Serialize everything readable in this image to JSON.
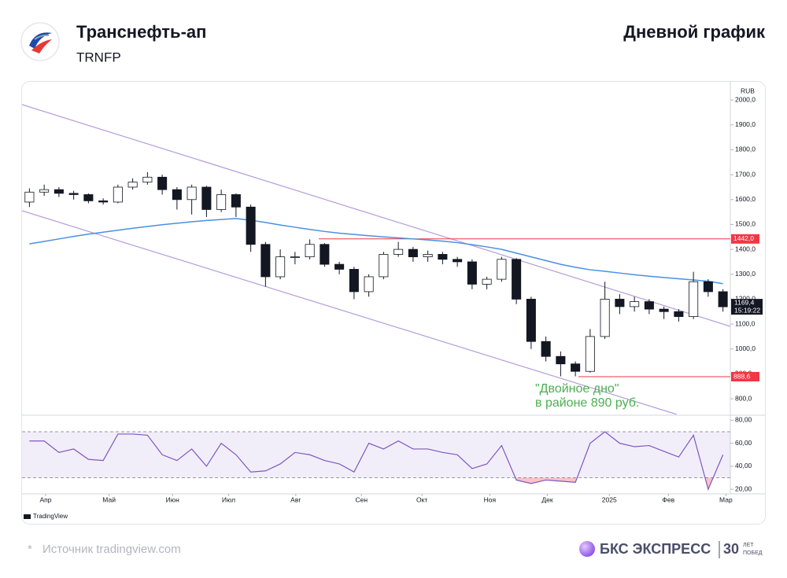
{
  "header": {
    "title": "Транснефть-ап",
    "ticker": "TRNFP",
    "chart_label": "Дневной график"
  },
  "chart_data": {
    "type": "candlestick",
    "currency": "RUB",
    "xlim": [
      -0.5,
      47.5
    ],
    "xticks": [
      {
        "value": 1.1,
        "label": "Апр"
      },
      {
        "value": 5.4,
        "label": "Май"
      },
      {
        "value": 9.7,
        "label": "Июн"
      },
      {
        "value": 13.5,
        "label": "Июл"
      },
      {
        "value": 18.05,
        "label": "Авг"
      },
      {
        "value": 22.5,
        "label": "Сен"
      },
      {
        "value": 26.6,
        "label": "Окт"
      },
      {
        "value": 31.2,
        "label": "Ноя"
      },
      {
        "value": 35.1,
        "label": "Дек"
      },
      {
        "value": 39.3,
        "label": "2025"
      },
      {
        "value": 43.3,
        "label": "Фев"
      },
      {
        "value": 47.2,
        "label": "Мар"
      }
    ],
    "ylim": [
      737,
      2070
    ],
    "yticks": [
      {
        "value": 2000,
        "label": "2000,0"
      },
      {
        "value": 1900,
        "label": "1900,0"
      },
      {
        "value": 1800,
        "label": "1800,0"
      },
      {
        "value": 1700,
        "label": "1700,0"
      },
      {
        "value": 1600,
        "label": "1600,0"
      },
      {
        "value": 1500,
        "label": "1500,0"
      },
      {
        "value": 1400,
        "label": "1400,0"
      },
      {
        "value": 1300,
        "label": "1300,0"
      },
      {
        "value": 1200,
        "label": "1200,0"
      },
      {
        "value": 1100,
        "label": "1100,0"
      },
      {
        "value": 1000,
        "label": "1000,0"
      },
      {
        "value": 900,
        "label": "900,0"
      },
      {
        "value": 800,
        "label": "800,0"
      }
    ],
    "candles": {
      "open": [
        1590,
        1630,
        1640,
        1625,
        1620,
        1595,
        1590,
        1650,
        1670,
        1690,
        1640,
        1600,
        1650,
        1560,
        1620,
        1570,
        1420,
        1290,
        1370,
        1370,
        1420,
        1340,
        1320,
        1230,
        1290,
        1380,
        1400,
        1370,
        1380,
        1360,
        1350,
        1260,
        1280,
        1360,
        1200,
        1030,
        970,
        940,
        910,
        1050,
        1200,
        1170,
        1190,
        1160,
        1150,
        1130,
        1270,
        1230
      ],
      "high": [
        1645,
        1660,
        1650,
        1635,
        1625,
        1605,
        1660,
        1685,
        1710,
        1700,
        1650,
        1660,
        1655,
        1640,
        1625,
        1580,
        1430,
        1400,
        1390,
        1440,
        1425,
        1350,
        1330,
        1300,
        1390,
        1430,
        1410,
        1395,
        1390,
        1370,
        1360,
        1290,
        1370,
        1365,
        1210,
        1050,
        990,
        950,
        1080,
        1270,
        1220,
        1210,
        1200,
        1170,
        1160,
        1310,
        1280,
        1240
      ],
      "low": [
        1570,
        1615,
        1610,
        1600,
        1585,
        1580,
        1585,
        1640,
        1660,
        1620,
        1560,
        1540,
        1530,
        1550,
        1530,
        1390,
        1250,
        1280,
        1340,
        1360,
        1330,
        1300,
        1200,
        1210,
        1280,
        1370,
        1350,
        1350,
        1340,
        1330,
        1240,
        1240,
        1270,
        1180,
        1000,
        950,
        890,
        890,
        905,
        1040,
        1140,
        1150,
        1140,
        1120,
        1110,
        1120,
        1210,
        1150
      ],
      "close": [
        1630,
        1640,
        1625,
        1620,
        1595,
        1590,
        1650,
        1670,
        1690,
        1640,
        1600,
        1650,
        1560,
        1620,
        1570,
        1420,
        1290,
        1370,
        1370,
        1420,
        1340,
        1320,
        1230,
        1290,
        1380,
        1400,
        1370,
        1380,
        1360,
        1350,
        1260,
        1280,
        1360,
        1200,
        1030,
        970,
        940,
        910,
        1050,
        1200,
        1170,
        1190,
        1160,
        1150,
        1130,
        1270,
        1230,
        1169.4
      ],
      "up_color": "#ffffff",
      "down_color": "#131722"
    },
    "moving_average": {
      "color": "#4a90e2",
      "values": [
        1422,
        1432,
        1442,
        1452,
        1461,
        1469,
        1477,
        1485,
        1492,
        1499,
        1505,
        1511,
        1516,
        1520,
        1524,
        1517,
        1508,
        1498,
        1489,
        1480,
        1472,
        1465,
        1460,
        1455,
        1450,
        1446,
        1442,
        1438,
        1433,
        1427,
        1419,
        1410,
        1400,
        1385,
        1370,
        1355,
        1340,
        1328,
        1318,
        1312,
        1305,
        1298,
        1292,
        1287,
        1282,
        1277,
        1272,
        1262
      ]
    },
    "levels": [
      {
        "value": 1442,
        "label": "1442,0",
        "color": "#f23645"
      },
      {
        "value": 888.6,
        "label": "888,6",
        "color": "#f23645"
      }
    ],
    "last_price": {
      "value": 1169.4,
      "label": "1169,4",
      "time": "15:19:22"
    },
    "annotation": {
      "lines": [
        "\"Двойное дно\"",
        "в районе 890 руб."
      ],
      "color": "#4caf50"
    },
    "rsi": {
      "color": "#7e57c2",
      "ylim": [
        16,
        83
      ],
      "band": [
        30,
        70
      ],
      "yticks": [
        {
          "value": 80,
          "label": "80,00"
        },
        {
          "value": 60,
          "label": "60,00"
        },
        {
          "value": 40,
          "label": "40,00"
        },
        {
          "value": 20,
          "label": "20,00"
        }
      ],
      "values": [
        62,
        62,
        52,
        55,
        46,
        45,
        68,
        68,
        67,
        50,
        45,
        55,
        40,
        60,
        50,
        35,
        36,
        42,
        52,
        50,
        45,
        42,
        35,
        60,
        55,
        62,
        55,
        55,
        52,
        50,
        38,
        42,
        58,
        28,
        25,
        28,
        27,
        26,
        60,
        70,
        60,
        57,
        58,
        53,
        48,
        67,
        20,
        50
      ]
    },
    "attribution": "TradingView"
  },
  "footer": {
    "asterisk": "*",
    "source": "Источник tradingview.com",
    "brand": "БКС ЭКСПРЕСС",
    "years": "30",
    "years_top": "ЛЕТ",
    "years_bottom": "ПОБЕД"
  }
}
